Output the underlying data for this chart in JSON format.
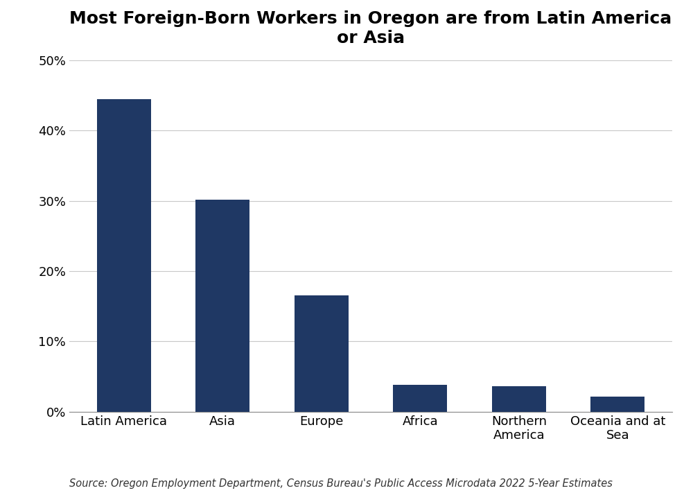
{
  "title": "Most Foreign-Born Workers in Oregon are from Latin America\nor Asia",
  "categories": [
    "Latin America",
    "Asia",
    "Europe",
    "Africa",
    "Northern\nAmerica",
    "Oceania and at\nSea"
  ],
  "values": [
    44.5,
    30.2,
    16.5,
    3.8,
    3.6,
    2.1
  ],
  "bar_color": "#1f3864",
  "ylim": [
    0,
    50
  ],
  "yticks": [
    0,
    10,
    20,
    30,
    40,
    50
  ],
  "title_fontsize": 18,
  "tick_fontsize": 13,
  "source_text": "Source: Oregon Employment Department, Census Bureau's Public Access Microdata 2022 5-Year Estimates",
  "source_fontsize": 10.5,
  "background_color": "#ffffff",
  "grid_color": "#c8c8c8"
}
